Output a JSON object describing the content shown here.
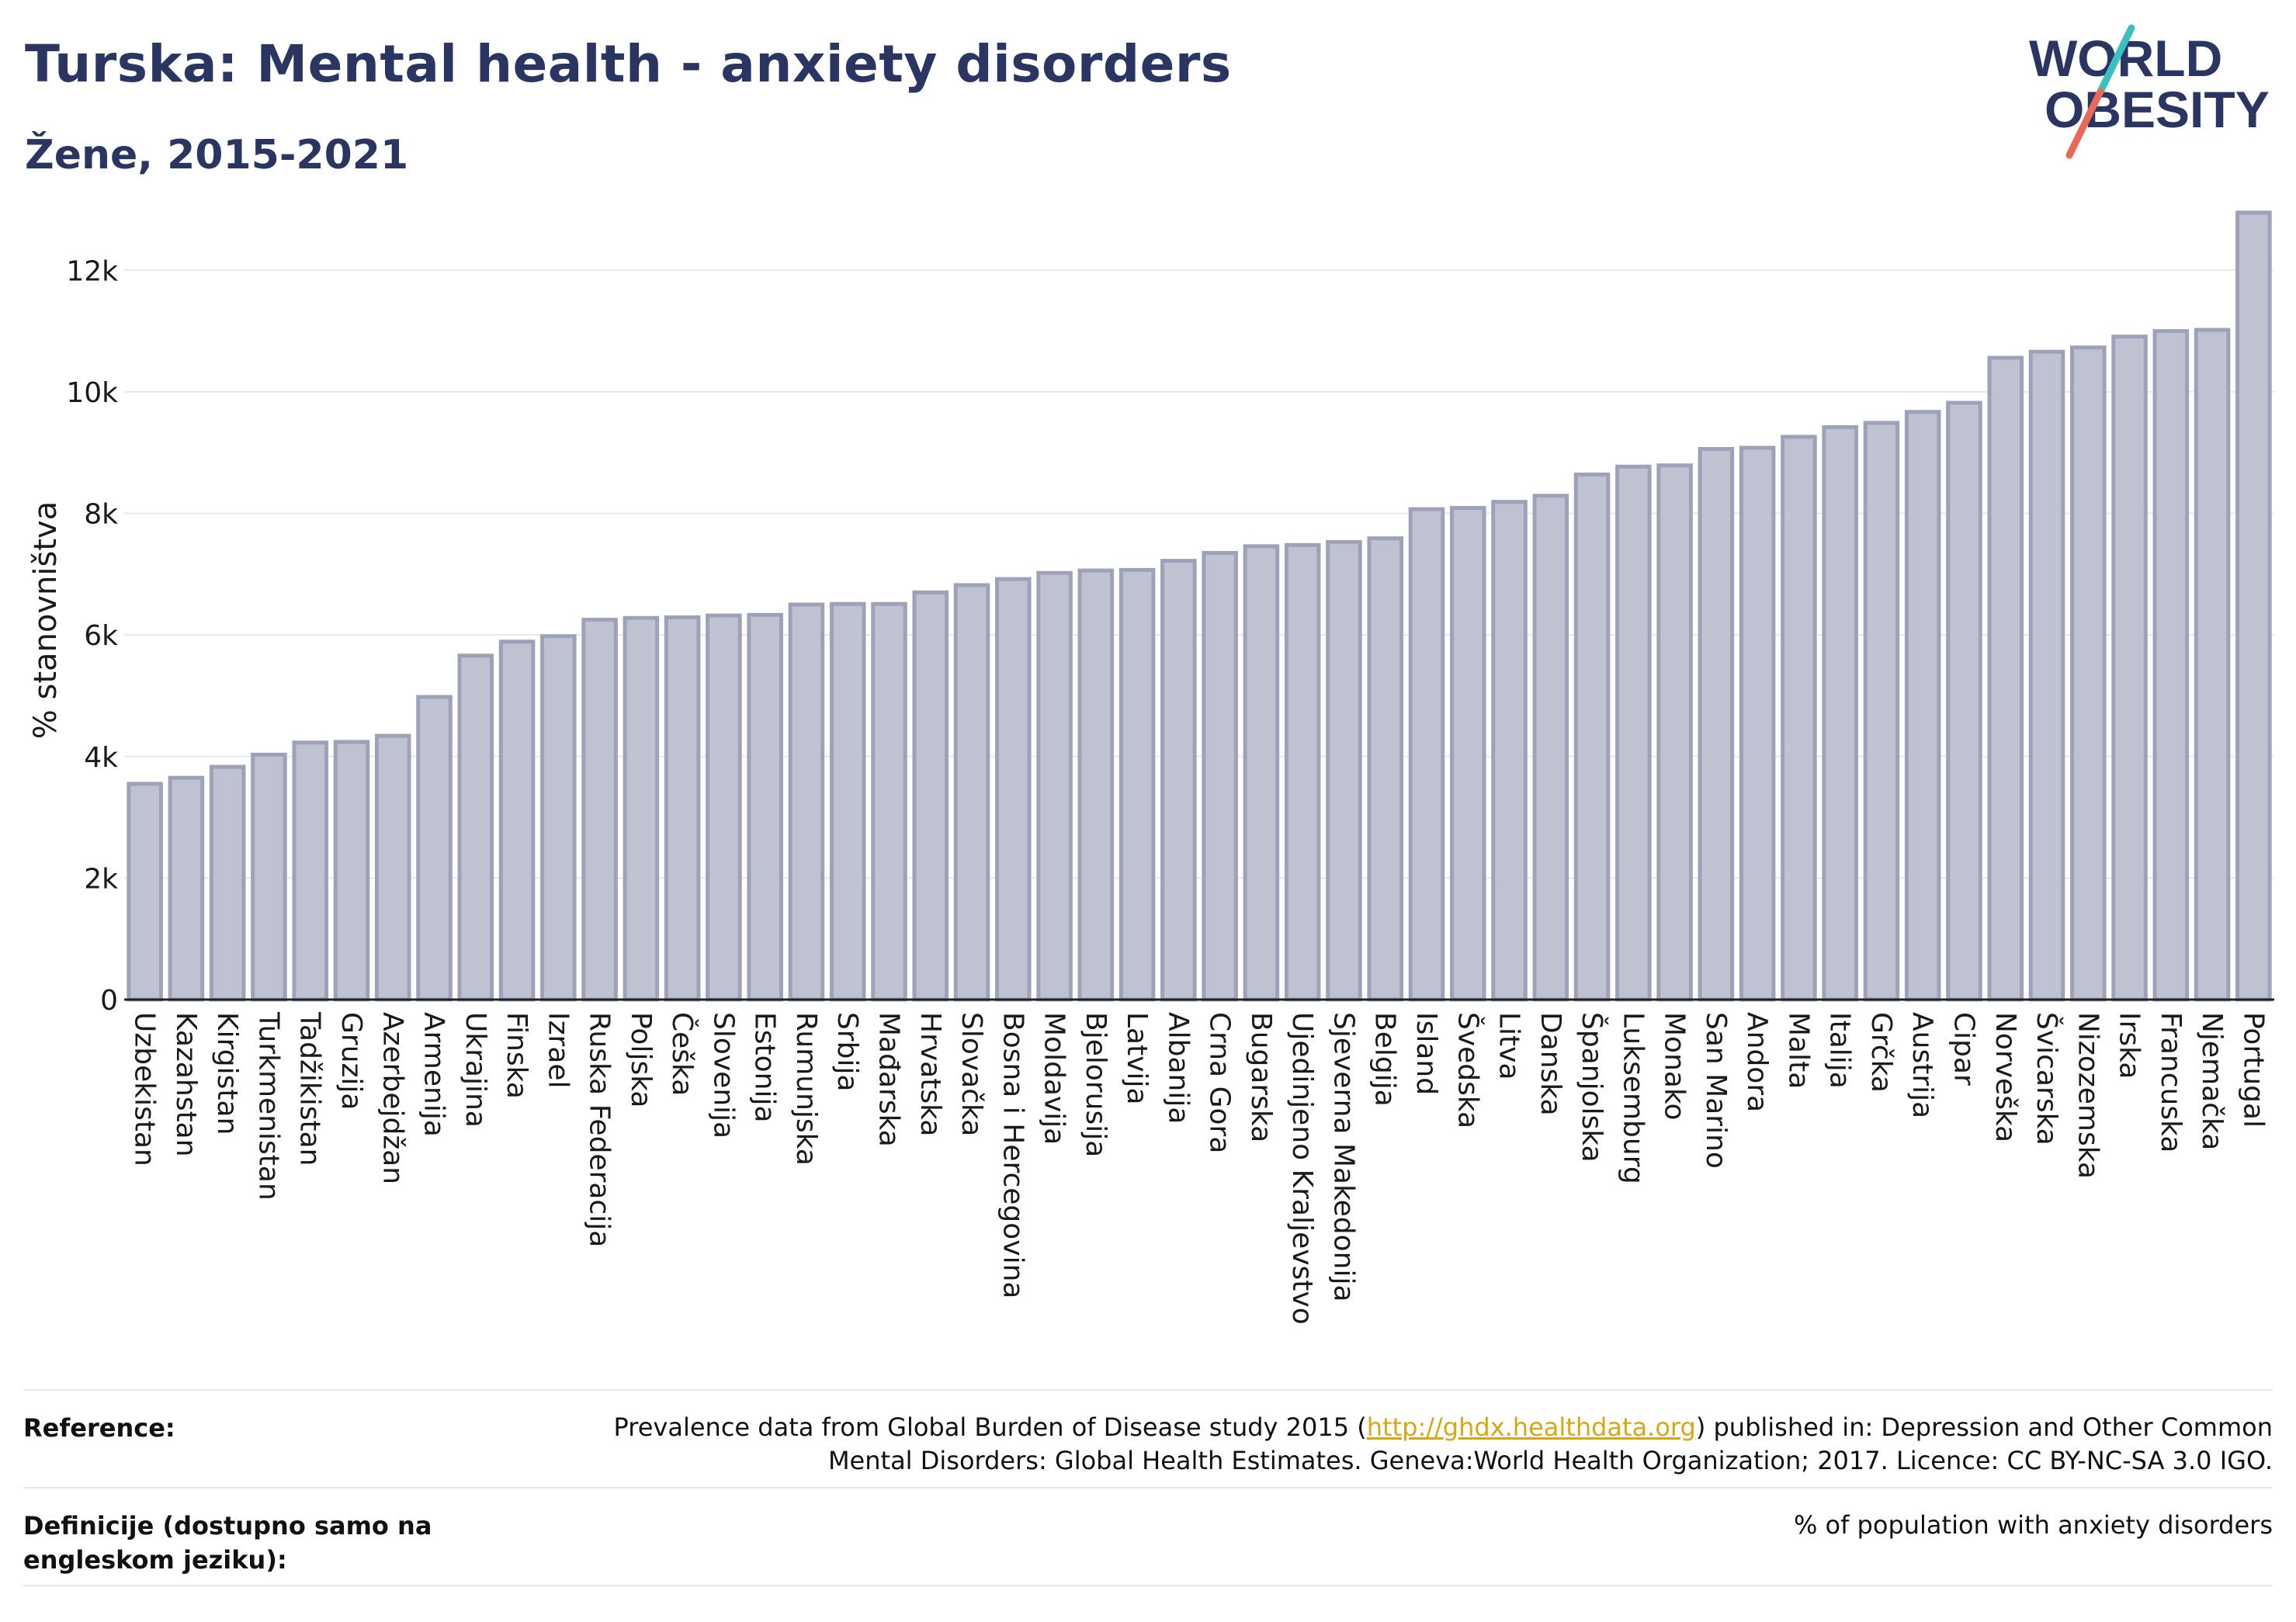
{
  "header": {
    "title": "Turska: Mental health - anxiety disorders",
    "subtitle": "Žene, 2015-2021"
  },
  "logo": {
    "line1": "WORLD",
    "line2": "OBESITY",
    "colors": {
      "text": "#2a3561",
      "slash_teal": "#3bbfbf",
      "slash_red": "#e8685a"
    }
  },
  "chart_data": {
    "type": "bar",
    "ylabel": "% stanovništva",
    "ylim": [
      0,
      13000
    ],
    "yticks": [
      0,
      2000,
      4000,
      6000,
      8000,
      10000,
      12000
    ],
    "ytick_labels": [
      "0",
      "2k",
      "4k",
      "6k",
      "8k",
      "10k",
      "12k"
    ],
    "grid": true,
    "bar_color": "#bfc2d1",
    "bar_border": "#9da2b8",
    "categories": [
      "Uzbekistan",
      "Kazahstan",
      "Kirgistan",
      "Turkmenistan",
      "Tadžikistan",
      "Gruzija",
      "Azerbejdžan",
      "Armenija",
      "Ukrajina",
      "Finska",
      "Izrael",
      "Ruska Federacija",
      "Poljska",
      "Češka",
      "Slovenija",
      "Estonija",
      "Rumunjska",
      "Srbija",
      "Mađarska",
      "Hrvatska",
      "Slovačka",
      "Bosna i Hercegovina",
      "Moldavija",
      "Bjelorusija",
      "Latvija",
      "Albanija",
      "Crna Gora",
      "Bugarska",
      "Ujedinjeno Kraljevstvo",
      "Sjeverna Makedonija",
      "Belgija",
      "Island",
      "Švedska",
      "Litva",
      "Danska",
      "Španjolska",
      "Luksemburg",
      "Monako",
      "San Marino",
      "Andora",
      "Malta",
      "Italija",
      "Grčka",
      "Austrija",
      "Cipar",
      "Norveška",
      "Švicarska",
      "Nizozemska",
      "Irska",
      "Francuska",
      "Njemačka",
      "Portugal"
    ],
    "values": [
      3550,
      3650,
      3830,
      4030,
      4230,
      4240,
      4340,
      4980,
      5660,
      5890,
      5980,
      6250,
      6280,
      6290,
      6320,
      6330,
      6500,
      6510,
      6510,
      6700,
      6820,
      6920,
      7020,
      7060,
      7070,
      7220,
      7350,
      7460,
      7480,
      7530,
      7590,
      8070,
      8090,
      8190,
      8290,
      8640,
      8770,
      8790,
      9060,
      9080,
      9260,
      9420,
      9490,
      9670,
      9820,
      10560,
      10660,
      10730,
      10910,
      11000,
      11020,
      12950
    ]
  },
  "footer": {
    "reference_label": "Reference:",
    "reference_pre": "Prevalence data from Global Burden of Disease study 2015 (",
    "reference_link": "http://ghdx.healthdata.org",
    "reference_post": ") published in: Depression and Other Common",
    "reference_line2": "Mental Disorders: Global Health Estimates. Geneva:World Health Organization; 2017. Licence: CC BY-NC-SA 3.0 IGO.",
    "definition_label": "Definicije (dostupno samo na engleskom jeziku):",
    "definition_text": "% of population with anxiety disorders"
  }
}
